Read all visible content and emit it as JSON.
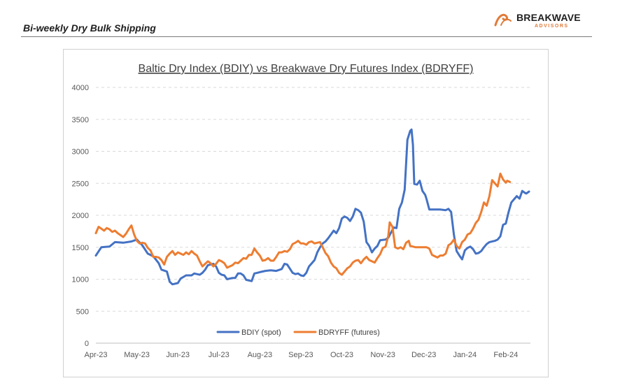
{
  "header": {
    "title": "Bi-weekly Dry Bulk Shipping",
    "logo_word_main": "BREAKWAVE",
    "logo_word_sub": "ADVISORS",
    "logo_icon": "wave-mark-icon"
  },
  "colors": {
    "bdiy": "#4472C4",
    "bdryff": "#ED7D31",
    "grid": "#d9d9d9",
    "accent": "#e07b39"
  },
  "chart_data": {
    "type": "line",
    "title": "Baltic Dry Index (BDIY) vs Breakwave Dry Futures Index (BDRYFF)",
    "xlabel": "",
    "ylabel": "",
    "ylim": [
      0,
      4000
    ],
    "yticks": [
      "0",
      "500",
      "1000",
      "1500",
      "2000",
      "2500",
      "3000",
      "3500",
      "4000"
    ],
    "x_ticks": [
      "Apr-23",
      "May-23",
      "Jun-23",
      "Jul-23",
      "Aug-23",
      "Sep-23",
      "Oct-23",
      "Nov-23",
      "Dec-23",
      "Jan-24",
      "Feb-24"
    ],
    "x_range": [
      "Apr-23",
      "mid Mar-24"
    ],
    "grid": "horizontal dashed",
    "legend_position": "bottom",
    "series": [
      {
        "name": "BDIY (spot)",
        "points": [
          [
            0.0,
            1370
          ],
          [
            0.2,
            1500
          ],
          [
            0.5,
            1510
          ],
          [
            0.7,
            1580
          ],
          [
            1.0,
            1570
          ],
          [
            1.3,
            1590
          ],
          [
            1.5,
            1620
          ],
          [
            1.7,
            1530
          ],
          [
            1.9,
            1400
          ],
          [
            2.1,
            1360
          ],
          [
            2.3,
            1250
          ],
          [
            2.4,
            1150
          ],
          [
            2.6,
            1120
          ],
          [
            2.7,
            960
          ],
          [
            2.8,
            920
          ],
          [
            3.0,
            940
          ],
          [
            3.1,
            1010
          ],
          [
            3.3,
            1060
          ],
          [
            3.5,
            1060
          ],
          [
            3.6,
            1090
          ],
          [
            3.8,
            1070
          ],
          [
            3.9,
            1100
          ],
          [
            4.0,
            1150
          ],
          [
            4.1,
            1220
          ],
          [
            4.3,
            1240
          ],
          [
            4.4,
            1200
          ],
          [
            4.5,
            1100
          ],
          [
            4.6,
            1070
          ],
          [
            4.7,
            1060
          ],
          [
            4.8,
            1000
          ],
          [
            5.0,
            1020
          ],
          [
            5.1,
            1020
          ],
          [
            5.2,
            1090
          ],
          [
            5.3,
            1090
          ],
          [
            5.4,
            1060
          ],
          [
            5.5,
            990
          ],
          [
            5.7,
            970
          ],
          [
            5.8,
            1090
          ],
          [
            5.9,
            1100
          ],
          [
            6.0,
            1110
          ],
          [
            6.2,
            1130
          ],
          [
            6.4,
            1140
          ],
          [
            6.6,
            1130
          ],
          [
            6.8,
            1160
          ],
          [
            6.9,
            1240
          ],
          [
            7.0,
            1230
          ],
          [
            7.2,
            1100
          ],
          [
            7.3,
            1080
          ],
          [
            7.4,
            1090
          ],
          [
            7.5,
            1060
          ],
          [
            7.6,
            1050
          ],
          [
            7.7,
            1100
          ],
          [
            7.8,
            1200
          ],
          [
            8.0,
            1300
          ],
          [
            8.1,
            1420
          ],
          [
            8.2,
            1500
          ],
          [
            8.3,
            1560
          ],
          [
            8.4,
            1590
          ],
          [
            8.5,
            1640
          ],
          [
            8.6,
            1700
          ],
          [
            8.7,
            1760
          ],
          [
            8.8,
            1720
          ],
          [
            8.9,
            1800
          ],
          [
            9.0,
            1950
          ],
          [
            9.1,
            1980
          ],
          [
            9.2,
            1960
          ],
          [
            9.3,
            1910
          ],
          [
            9.4,
            1980
          ],
          [
            9.5,
            2100
          ],
          [
            9.6,
            2080
          ],
          [
            9.7,
            2040
          ],
          [
            9.8,
            1900
          ],
          [
            9.9,
            1580
          ],
          [
            10.0,
            1520
          ],
          [
            10.1,
            1420
          ],
          [
            10.2,
            1480
          ],
          [
            10.3,
            1520
          ],
          [
            10.4,
            1610
          ],
          [
            10.6,
            1620
          ],
          [
            10.7,
            1650
          ],
          [
            10.8,
            1730
          ],
          [
            10.9,
            1810
          ],
          [
            11.0,
            1800
          ],
          [
            11.1,
            2100
          ],
          [
            11.2,
            2200
          ],
          [
            11.3,
            2400
          ],
          [
            11.4,
            3180
          ],
          [
            11.5,
            3320
          ],
          [
            11.55,
            3340
          ],
          [
            11.6,
            3100
          ],
          [
            11.65,
            2490
          ],
          [
            11.75,
            2480
          ],
          [
            11.85,
            2540
          ],
          [
            11.95,
            2380
          ],
          [
            12.05,
            2320
          ],
          [
            12.1,
            2250
          ],
          [
            12.2,
            2090
          ],
          [
            12.4,
            2090
          ],
          [
            12.6,
            2090
          ],
          [
            12.8,
            2080
          ],
          [
            12.9,
            2100
          ],
          [
            13.0,
            2050
          ],
          [
            13.1,
            1700
          ],
          [
            13.2,
            1440
          ],
          [
            13.3,
            1370
          ],
          [
            13.4,
            1310
          ],
          [
            13.5,
            1450
          ],
          [
            13.6,
            1490
          ],
          [
            13.7,
            1510
          ],
          [
            13.8,
            1470
          ],
          [
            13.9,
            1400
          ],
          [
            14.0,
            1410
          ],
          [
            14.1,
            1440
          ],
          [
            14.2,
            1500
          ],
          [
            14.3,
            1550
          ],
          [
            14.4,
            1580
          ],
          [
            14.6,
            1600
          ],
          [
            14.7,
            1620
          ],
          [
            14.8,
            1670
          ],
          [
            14.9,
            1850
          ],
          [
            15.0,
            1870
          ],
          [
            15.1,
            2050
          ],
          [
            15.2,
            2200
          ],
          [
            15.3,
            2250
          ],
          [
            15.4,
            2300
          ],
          [
            15.5,
            2260
          ],
          [
            15.6,
            2380
          ],
          [
            15.7,
            2350
          ],
          [
            15.75,
            2340
          ],
          [
            15.85,
            2370
          ]
        ]
      },
      {
        "name": "BDRYFF (futures)",
        "points": [
          [
            0.0,
            1720
          ],
          [
            0.1,
            1820
          ],
          [
            0.2,
            1790
          ],
          [
            0.3,
            1760
          ],
          [
            0.4,
            1800
          ],
          [
            0.5,
            1780
          ],
          [
            0.6,
            1740
          ],
          [
            0.7,
            1760
          ],
          [
            0.8,
            1720
          ],
          [
            0.9,
            1690
          ],
          [
            1.0,
            1660
          ],
          [
            1.1,
            1710
          ],
          [
            1.2,
            1780
          ],
          [
            1.3,
            1840
          ],
          [
            1.4,
            1700
          ],
          [
            1.5,
            1600
          ],
          [
            1.6,
            1560
          ],
          [
            1.7,
            1570
          ],
          [
            1.8,
            1560
          ],
          [
            1.9,
            1490
          ],
          [
            2.0,
            1450
          ],
          [
            2.1,
            1350
          ],
          [
            2.2,
            1350
          ],
          [
            2.3,
            1340
          ],
          [
            2.4,
            1300
          ],
          [
            2.5,
            1230
          ],
          [
            2.6,
            1350
          ],
          [
            2.7,
            1400
          ],
          [
            2.8,
            1440
          ],
          [
            2.9,
            1380
          ],
          [
            3.0,
            1420
          ],
          [
            3.1,
            1400
          ],
          [
            3.2,
            1380
          ],
          [
            3.3,
            1420
          ],
          [
            3.4,
            1390
          ],
          [
            3.5,
            1440
          ],
          [
            3.6,
            1400
          ],
          [
            3.7,
            1370
          ],
          [
            3.8,
            1280
          ],
          [
            3.9,
            1200
          ],
          [
            4.0,
            1240
          ],
          [
            4.1,
            1280
          ],
          [
            4.2,
            1250
          ],
          [
            4.3,
            1200
          ],
          [
            4.4,
            1240
          ],
          [
            4.5,
            1300
          ],
          [
            4.6,
            1280
          ],
          [
            4.7,
            1250
          ],
          [
            4.8,
            1180
          ],
          [
            5.0,
            1220
          ],
          [
            5.1,
            1260
          ],
          [
            5.2,
            1250
          ],
          [
            5.3,
            1290
          ],
          [
            5.4,
            1330
          ],
          [
            5.5,
            1320
          ],
          [
            5.6,
            1380
          ],
          [
            5.7,
            1380
          ],
          [
            5.8,
            1480
          ],
          [
            5.9,
            1420
          ],
          [
            6.0,
            1370
          ],
          [
            6.1,
            1290
          ],
          [
            6.2,
            1300
          ],
          [
            6.3,
            1330
          ],
          [
            6.4,
            1290
          ],
          [
            6.5,
            1290
          ],
          [
            6.6,
            1350
          ],
          [
            6.7,
            1420
          ],
          [
            6.8,
            1420
          ],
          [
            6.9,
            1440
          ],
          [
            7.0,
            1430
          ],
          [
            7.1,
            1470
          ],
          [
            7.2,
            1550
          ],
          [
            7.3,
            1570
          ],
          [
            7.4,
            1600
          ],
          [
            7.5,
            1560
          ],
          [
            7.6,
            1560
          ],
          [
            7.7,
            1540
          ],
          [
            7.8,
            1580
          ],
          [
            7.9,
            1590
          ],
          [
            8.0,
            1560
          ],
          [
            8.1,
            1570
          ],
          [
            8.2,
            1580
          ],
          [
            8.3,
            1500
          ],
          [
            8.4,
            1410
          ],
          [
            8.5,
            1360
          ],
          [
            8.6,
            1260
          ],
          [
            8.7,
            1200
          ],
          [
            8.8,
            1170
          ],
          [
            8.9,
            1100
          ],
          [
            9.0,
            1070
          ],
          [
            9.1,
            1120
          ],
          [
            9.2,
            1170
          ],
          [
            9.3,
            1200
          ],
          [
            9.4,
            1260
          ],
          [
            9.5,
            1290
          ],
          [
            9.6,
            1300
          ],
          [
            9.7,
            1250
          ],
          [
            9.8,
            1310
          ],
          [
            9.9,
            1350
          ],
          [
            10.0,
            1300
          ],
          [
            10.1,
            1280
          ],
          [
            10.2,
            1260
          ],
          [
            10.3,
            1330
          ],
          [
            10.4,
            1390
          ],
          [
            10.5,
            1490
          ],
          [
            10.6,
            1510
          ],
          [
            10.7,
            1680
          ],
          [
            10.75,
            1890
          ],
          [
            10.85,
            1820
          ],
          [
            10.95,
            1500
          ],
          [
            11.05,
            1480
          ],
          [
            11.15,
            1500
          ],
          [
            11.25,
            1470
          ],
          [
            11.35,
            1570
          ],
          [
            11.45,
            1600
          ],
          [
            11.5,
            1520
          ],
          [
            11.6,
            1510
          ],
          [
            11.7,
            1500
          ],
          [
            11.8,
            1500
          ],
          [
            11.9,
            1500
          ],
          [
            12.0,
            1500
          ],
          [
            12.1,
            1500
          ],
          [
            12.2,
            1480
          ],
          [
            12.3,
            1380
          ],
          [
            12.4,
            1360
          ],
          [
            12.5,
            1340
          ],
          [
            12.6,
            1370
          ],
          [
            12.7,
            1370
          ],
          [
            12.8,
            1400
          ],
          [
            12.9,
            1530
          ],
          [
            13.0,
            1560
          ],
          [
            13.1,
            1620
          ],
          [
            13.2,
            1520
          ],
          [
            13.3,
            1480
          ],
          [
            13.4,
            1580
          ],
          [
            13.5,
            1620
          ],
          [
            13.6,
            1700
          ],
          [
            13.7,
            1720
          ],
          [
            13.8,
            1790
          ],
          [
            13.9,
            1880
          ],
          [
            14.0,
            1930
          ],
          [
            14.1,
            2050
          ],
          [
            14.2,
            2200
          ],
          [
            14.3,
            2150
          ],
          [
            14.4,
            2300
          ],
          [
            14.5,
            2550
          ],
          [
            14.6,
            2500
          ],
          [
            14.7,
            2450
          ],
          [
            14.8,
            2650
          ],
          [
            14.9,
            2560
          ],
          [
            15.0,
            2510
          ],
          [
            15.05,
            2540
          ],
          [
            15.1,
            2530
          ],
          [
            15.15,
            2520
          ]
        ]
      }
    ]
  }
}
